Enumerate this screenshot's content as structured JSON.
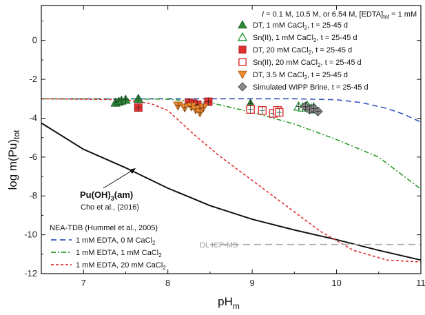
{
  "chart_data": {
    "type": "scatter",
    "xlabel": "pH",
    "xlabel_sub": "m",
    "ylabel": "log m(Pu)",
    "ylabel_sub": "tot",
    "xlim": [
      6.5,
      11
    ],
    "ylim": [
      -12,
      1.8
    ],
    "xticks": [
      7,
      8,
      9,
      10,
      11
    ],
    "yticks": [
      0,
      -2,
      -4,
      -6,
      -8,
      -10,
      -12
    ],
    "conditions": {
      "I": "I",
      "I_text": " = 0.1 M, 10.5 M, or 6.54 M, [EDTA]",
      "I_sub": "tot",
      "I_tail": " = 1 mM"
    },
    "series": [
      {
        "name": "DT, 1 mM CaCl",
        "sub": "2",
        "suffix": ", t = 25-45 d",
        "marker": "triangle-up",
        "fill": "#2e8b3a",
        "stroke": "#1a5e22",
        "filled": true,
        "points": [
          [
            7.38,
            -3.2
          ],
          [
            7.42,
            -3.15
          ],
          [
            7.45,
            -3.1
          ],
          [
            7.5,
            -3.05
          ],
          [
            7.65,
            -3.0
          ],
          [
            8.98,
            -3.25
          ],
          [
            9.67,
            -3.45
          ],
          [
            9.7,
            -3.5
          ],
          [
            9.75,
            -3.55
          ]
        ]
      },
      {
        "name": "Sn(II), 1 mM CaCl",
        "sub": "2",
        "suffix": ", t = 25-45 d",
        "marker": "triangle-up",
        "fill": "none",
        "stroke": "#2ea043",
        "filled": false,
        "points": [
          [
            9.55,
            -3.4
          ],
          [
            9.6,
            -3.45
          ],
          [
            9.65,
            -3.35
          ],
          [
            9.7,
            -3.5
          ],
          [
            9.73,
            -3.45
          ]
        ]
      },
      {
        "name": "DT, 20 mM CaCl",
        "sub": "2",
        "suffix": ", t = 25-45 d",
        "marker": "square",
        "fill": "#e03030",
        "stroke": "#a81e1e",
        "filled": true,
        "points": [
          [
            7.65,
            -3.45
          ],
          [
            8.25,
            -3.2
          ],
          [
            8.3,
            -3.25
          ],
          [
            8.35,
            -3.3
          ],
          [
            8.48,
            -3.15
          ]
        ]
      },
      {
        "name": "Sn(II), 20 mM CaCl",
        "sub": "2",
        "suffix": ", t = 25-45 d",
        "marker": "square",
        "fill": "none",
        "stroke": "#e03030",
        "filled": false,
        "points": [
          [
            8.98,
            -3.55
          ],
          [
            9.12,
            -3.6
          ],
          [
            9.25,
            -3.75
          ],
          [
            9.3,
            -3.6
          ],
          [
            9.32,
            -3.7
          ]
        ]
      },
      {
        "name": "DT, 3.5 M CaCl",
        "sub": "2",
        "suffix": ", t = 25-45 d",
        "marker": "triangle-down",
        "fill": "#f08a2e",
        "stroke": "#a85a10",
        "filled": true,
        "points": [
          [
            8.12,
            -3.35
          ],
          [
            8.2,
            -3.45
          ],
          [
            8.28,
            -3.4
          ],
          [
            8.33,
            -3.55
          ],
          [
            8.38,
            -3.7
          ],
          [
            8.42,
            -3.45
          ]
        ]
      },
      {
        "name": "Simulated WIPP Brine, t = 25-45 d",
        "sub": "",
        "suffix": "",
        "marker": "diamond",
        "fill": "#8c8c8c",
        "stroke": "#444444",
        "filled": true,
        "points": [
          [
            9.63,
            -3.4
          ],
          [
            9.68,
            -3.55
          ],
          [
            9.73,
            -3.5
          ],
          [
            9.78,
            -3.65
          ]
        ]
      }
    ],
    "lines": [
      {
        "name": "Pu(OH)3(am) solubility",
        "style": "solid",
        "color": "#111111",
        "points": [
          [
            6.5,
            -4.25
          ],
          [
            7.0,
            -5.6
          ],
          [
            7.5,
            -6.55
          ],
          [
            8.0,
            -7.6
          ],
          [
            8.5,
            -8.5
          ],
          [
            9.0,
            -9.2
          ],
          [
            9.5,
            -9.75
          ],
          [
            10.0,
            -10.25
          ],
          [
            10.5,
            -10.8
          ],
          [
            11.0,
            -11.3
          ]
        ]
      },
      {
        "name": "1 mM EDTA, 0 M CaCl",
        "sub": "2",
        "style": "dashed",
        "color": "#3050c0",
        "points": [
          [
            6.5,
            -3.0
          ],
          [
            9.5,
            -3.0
          ],
          [
            10.0,
            -3.05
          ],
          [
            10.3,
            -3.2
          ],
          [
            10.6,
            -3.5
          ],
          [
            10.8,
            -3.8
          ],
          [
            11.0,
            -4.2
          ]
        ]
      },
      {
        "name": "1 mM EDTA, 1 mM CaCl",
        "sub": "2",
        "style": "dashdot",
        "color": "#2a9a2a",
        "points": [
          [
            6.5,
            -3.0
          ],
          [
            8.0,
            -3.02
          ],
          [
            8.5,
            -3.2
          ],
          [
            9.0,
            -3.7
          ],
          [
            9.5,
            -4.3
          ],
          [
            10.0,
            -5.1
          ],
          [
            10.5,
            -6.0
          ],
          [
            11.0,
            -7.65
          ]
        ]
      },
      {
        "name": "1 mM EDTA, 20 mM CaCl",
        "sub": "2",
        "style": "dotted",
        "color": "#e03030",
        "points": [
          [
            6.5,
            -3.0
          ],
          [
            7.5,
            -3.05
          ],
          [
            7.8,
            -3.25
          ],
          [
            8.0,
            -3.6
          ],
          [
            8.3,
            -4.8
          ],
          [
            8.6,
            -5.9
          ],
          [
            9.0,
            -7.2
          ],
          [
            9.4,
            -8.5
          ],
          [
            9.8,
            -9.8
          ],
          [
            10.2,
            -10.8
          ],
          [
            10.6,
            -11.3
          ],
          [
            11.0,
            -11.4
          ]
        ]
      },
      {
        "name": "DL ICP-MS",
        "style": "longdash",
        "color": "#aaaaaa",
        "points": [
          [
            8.5,
            -10.5
          ],
          [
            11.0,
            -10.5
          ]
        ]
      }
    ],
    "annotations": {
      "pu_label": "Pu(OH)",
      "pu_sub": "3",
      "pu_tail": "(am)",
      "pu_ref": "Cho et al., (2016)",
      "nea_title": "NEA-TDB (Hummel et al., 2005)",
      "dl_label": "DL ICP-MS"
    },
    "colors": {
      "axis": "#111111",
      "background": "#ffffff"
    }
  }
}
